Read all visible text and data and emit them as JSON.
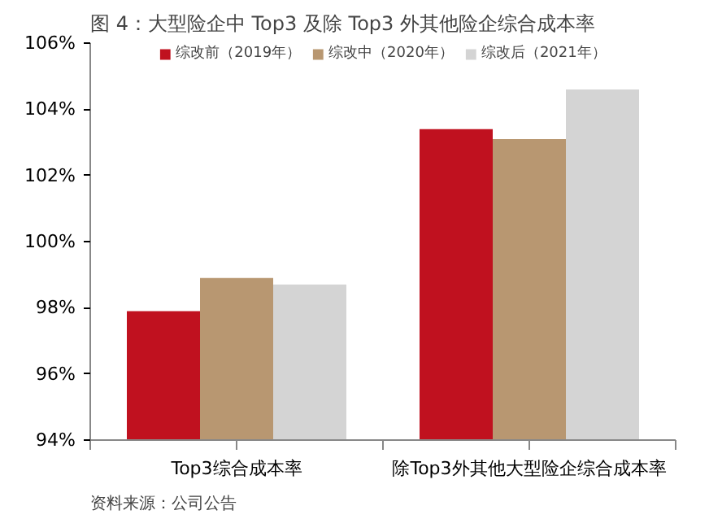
{
  "chart_data": {
    "type": "bar",
    "title": "图 4：大型险企中 Top3 及除 Top3 外其他险企综合成本率",
    "categories": [
      "Top3综合成本率",
      "除Top3外其他大型险企综合成本率"
    ],
    "series": [
      {
        "name": "综改前（2019年）",
        "color": "#c0111f",
        "values": [
          97.9,
          103.4
        ]
      },
      {
        "name": "综改中（2020年）",
        "color": "#b89771",
        "values": [
          98.9,
          103.1
        ]
      },
      {
        "name": "综改后（2021年）",
        "color": "#d4d4d4",
        "values": [
          98.7,
          104.6
        ]
      }
    ],
    "ylim": [
      94,
      106
    ],
    "yticks": [
      {
        "value": 94,
        "label": "94%"
      },
      {
        "value": 96,
        "label": "96%"
      },
      {
        "value": 98,
        "label": "98%"
      },
      {
        "value": 100,
        "label": "100%"
      },
      {
        "value": 102,
        "label": "102%"
      },
      {
        "value": 104,
        "label": "104%"
      },
      {
        "value": 106,
        "label": "106%"
      }
    ],
    "grid": false,
    "legend": "top",
    "annotations": [
      "资料来源：公司公告"
    ]
  }
}
